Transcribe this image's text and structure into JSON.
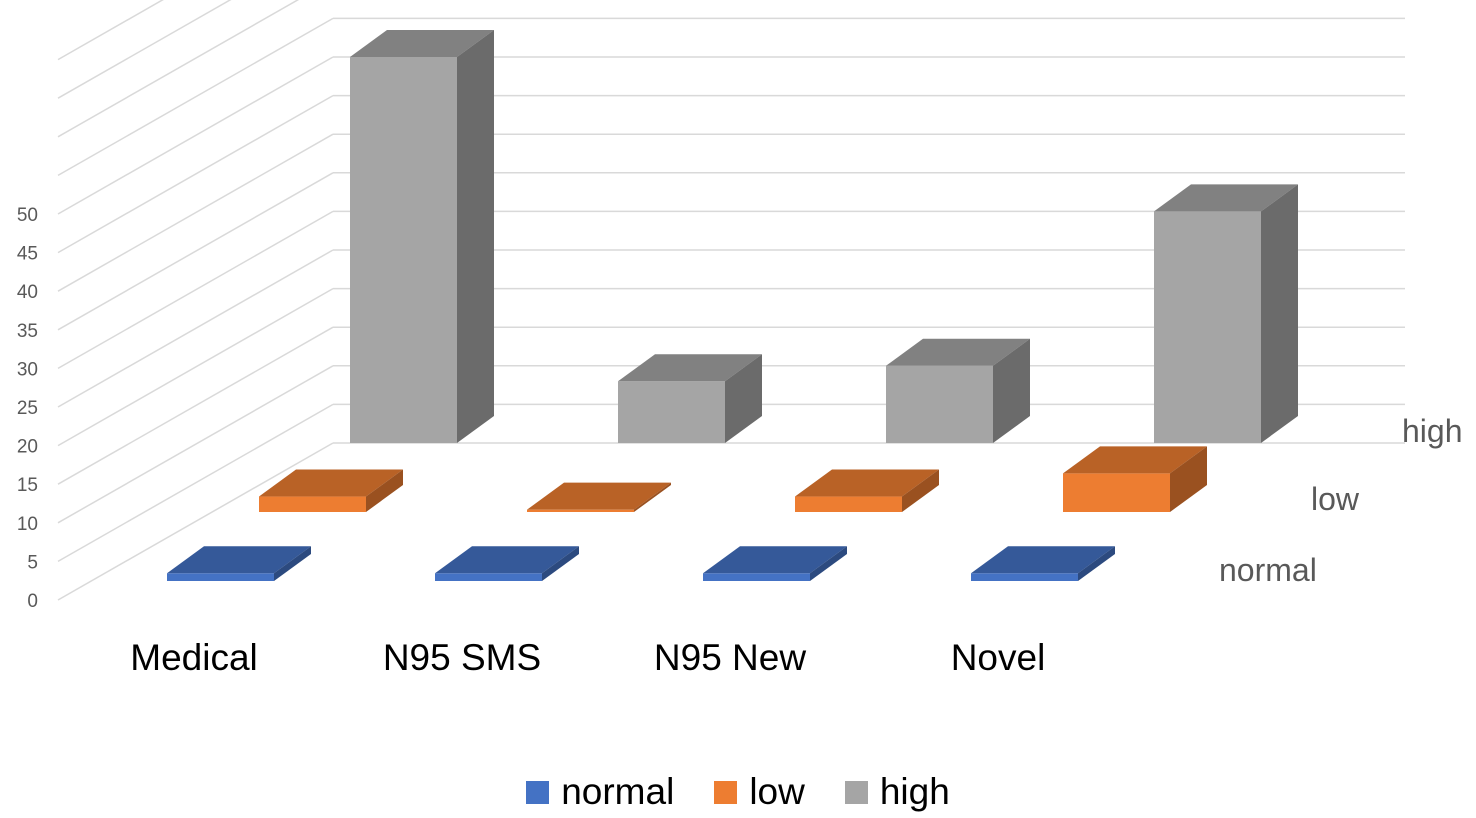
{
  "chart_data": {
    "type": "bar",
    "subtype": "3d-column",
    "categories": [
      "Medical",
      "N95 SMS",
      "N95 New",
      "Novel"
    ],
    "series": [
      {
        "name": "normal",
        "color": "#4472C4",
        "values": [
          1,
          1,
          1,
          1
        ]
      },
      {
        "name": "low",
        "color": "#ED7D31",
        "values": [
          2,
          0.3,
          2,
          5
        ]
      },
      {
        "name": "high",
        "color": "#A5A5A5",
        "values": [
          50,
          8,
          10,
          30
        ]
      }
    ],
    "yticks": [
      0,
      5,
      10,
      15,
      20,
      25,
      30,
      35,
      40,
      45,
      50
    ],
    "ylim": [
      0,
      70
    ],
    "grid": true,
    "legend": "bottom"
  }
}
